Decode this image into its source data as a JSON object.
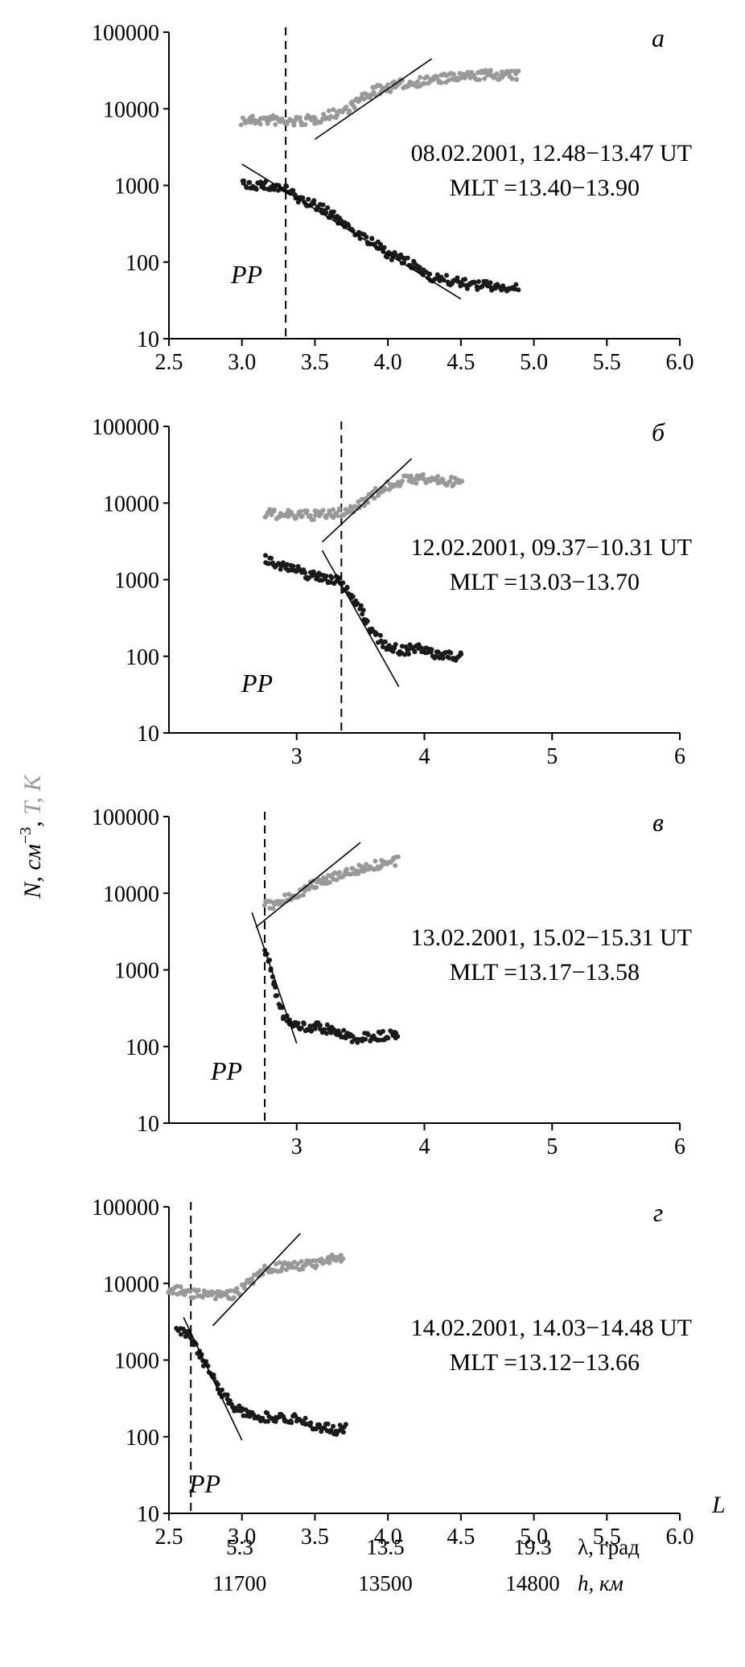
{
  "figure": {
    "ylabel_n": "N, см",
    "ylabel_n_exp": "−3",
    "ylabel_sep": ", ",
    "ylabel_t": "T, K",
    "xlabel": "L",
    "lambda_label": "λ, град",
    "h_label": "h, км",
    "lambda_values": [
      "5.3",
      "13.5",
      "19.3"
    ],
    "h_values": [
      "11700",
      "13500",
      "14800"
    ],
    "colors": {
      "density": "#1a1a1a",
      "temperature": "#999999",
      "fit": "#000000",
      "axis": "#000000"
    }
  },
  "chart_data": [
    {
      "type": "scatter",
      "panel_label": "а",
      "annotation_line1": "08.02.2001, 12.48−13.47 UT",
      "annotation_line2": "MLT =13.40−13.90",
      "pp_label": "PP",
      "pp_L": 3.3,
      "yscale": "log",
      "ylim": [
        10,
        100000
      ],
      "yticks": [
        "10",
        "100",
        "1000",
        "10000",
        "100000"
      ],
      "xlim": [
        2.5,
        6.0
      ],
      "xticks": [
        "2.5",
        "3.0",
        "3.5",
        "4.0",
        "4.5",
        "5.0",
        "5.5",
        "6.0"
      ],
      "series": [
        {
          "points": [
            [
              3.0,
              7000
            ],
            [
              3.2,
              7200
            ],
            [
              3.3,
              6700
            ],
            [
              3.5,
              7200
            ],
            [
              3.7,
              9500
            ],
            [
              3.9,
              17000
            ],
            [
              4.1,
              21000
            ],
            [
              4.3,
              24000
            ],
            [
              4.5,
              26000
            ],
            [
              4.7,
              28000
            ],
            [
              4.9,
              27000
            ]
          ]
        },
        {
          "points": [
            [
              3.0,
              1050
            ],
            [
              3.15,
              1000
            ],
            [
              3.3,
              900
            ],
            [
              3.4,
              650
            ],
            [
              3.55,
              500
            ],
            [
              3.7,
              320
            ],
            [
              3.85,
              200
            ],
            [
              4.0,
              130
            ],
            [
              4.15,
              95
            ],
            [
              4.3,
              65
            ],
            [
              4.45,
              55
            ],
            [
              4.6,
              50
            ],
            [
              4.75,
              48
            ],
            [
              4.9,
              44
            ]
          ]
        }
      ],
      "fits": [
        [
          [
            3.5,
            4000
          ],
          [
            4.3,
            45000
          ]
        ],
        [
          [
            3.0,
            1900
          ],
          [
            4.5,
            33
          ]
        ]
      ]
    },
    {
      "type": "scatter",
      "panel_label": "б",
      "annotation_line1": "12.02.2001, 09.37−10.31 UT",
      "annotation_line2": "MLT =13.03−13.70",
      "pp_label": "PP",
      "pp_L": 3.35,
      "yscale": "log",
      "ylim": [
        10,
        100000
      ],
      "yticks": [
        "10",
        "100",
        "1000",
        "10000",
        "100000"
      ],
      "xlim": [
        2.0,
        6.0
      ],
      "xticks": [
        "3",
        "4",
        "5",
        "6"
      ],
      "series": [
        {
          "points": [
            [
              2.75,
              7300
            ],
            [
              2.9,
              7000
            ],
            [
              3.1,
              6900
            ],
            [
              3.3,
              7200
            ],
            [
              3.45,
              8500
            ],
            [
              3.6,
              13000
            ],
            [
              3.75,
              18000
            ],
            [
              3.9,
              21000
            ],
            [
              4.1,
              20000
            ],
            [
              4.3,
              18000
            ]
          ]
        },
        {
          "points": [
            [
              2.75,
              1900
            ],
            [
              2.9,
              1500
            ],
            [
              3.1,
              1150
            ],
            [
              3.3,
              1000
            ],
            [
              3.4,
              750
            ],
            [
              3.5,
              400
            ],
            [
              3.6,
              200
            ],
            [
              3.7,
              140
            ],
            [
              3.8,
              120
            ],
            [
              3.95,
              125
            ],
            [
              4.1,
              105
            ],
            [
              4.3,
              100
            ]
          ]
        }
      ],
      "fits": [
        [
          [
            3.2,
            3100
          ],
          [
            3.9,
            38000
          ]
        ],
        [
          [
            3.2,
            2400
          ],
          [
            3.8,
            40
          ]
        ]
      ]
    },
    {
      "type": "scatter",
      "panel_label": "в",
      "annotation_line1": "13.02.2001, 15.02−15.31 UT",
      "annotation_line2": "MLT =13.17−13.58",
      "pp_label": "PP",
      "pp_L": 2.75,
      "yscale": "log",
      "ylim": [
        10,
        100000
      ],
      "yticks": [
        "10",
        "100",
        "1000",
        "10000",
        "100000"
      ],
      "xlim": [
        2.0,
        6.0
      ],
      "xticks": [
        "3",
        "4",
        "5",
        "6"
      ],
      "series": [
        {
          "points": [
            [
              2.75,
              7000
            ],
            [
              2.85,
              7200
            ],
            [
              2.95,
              9000
            ],
            [
              3.1,
              12000
            ],
            [
              3.3,
              17000
            ],
            [
              3.5,
              21000
            ],
            [
              3.7,
              25000
            ],
            [
              3.8,
              26000
            ]
          ]
        },
        {
          "points": [
            [
              2.75,
              1800
            ],
            [
              2.8,
              1000
            ],
            [
              2.85,
              450
            ],
            [
              2.9,
              250
            ],
            [
              3.0,
              180
            ],
            [
              3.15,
              180
            ],
            [
              3.3,
              160
            ],
            [
              3.45,
              125
            ],
            [
              3.6,
              135
            ],
            [
              3.75,
              140
            ],
            [
              3.8,
              135
            ]
          ]
        }
      ],
      "fits": [
        [
          [
            2.68,
            3600
          ],
          [
            3.5,
            46000
          ]
        ],
        [
          [
            2.65,
            5600
          ],
          [
            3.0,
            110
          ]
        ]
      ]
    },
    {
      "type": "scatter",
      "panel_label": "г",
      "annotation_line1": "14.02.2001, 14.03−14.48 UT",
      "annotation_line2": "MLT =13.12−13.66",
      "pp_label": "PP",
      "pp_L": 2.65,
      "yscale": "log",
      "ylim": [
        10,
        100000
      ],
      "yticks": [
        "10",
        "100",
        "1000",
        "10000",
        "100000"
      ],
      "xlim": [
        2.5,
        6.0
      ],
      "xticks": [
        "2.5",
        "3.0",
        "3.5",
        "4.0",
        "4.5",
        "5.0",
        "5.5",
        "6.0"
      ],
      "series": [
        {
          "points": [
            [
              2.5,
              8500
            ],
            [
              2.65,
              7500
            ],
            [
              2.8,
              6800
            ],
            [
              2.95,
              7200
            ],
            [
              3.05,
              10000
            ],
            [
              3.15,
              15000
            ],
            [
              3.3,
              17000
            ],
            [
              3.5,
              18000
            ],
            [
              3.7,
              22000
            ]
          ]
        },
        {
          "points": [
            [
              2.55,
              2600
            ],
            [
              2.65,
              2000
            ],
            [
              2.75,
              900
            ],
            [
              2.85,
              400
            ],
            [
              2.95,
              250
            ],
            [
              3.05,
              190
            ],
            [
              3.2,
              180
            ],
            [
              3.35,
              175
            ],
            [
              3.5,
              140
            ],
            [
              3.65,
              120
            ],
            [
              3.72,
              130
            ]
          ]
        }
      ],
      "fits": [
        [
          [
            2.8,
            2800
          ],
          [
            3.4,
            45000
          ]
        ],
        [
          [
            2.6,
            3600
          ],
          [
            3.0,
            90
          ]
        ]
      ]
    }
  ]
}
